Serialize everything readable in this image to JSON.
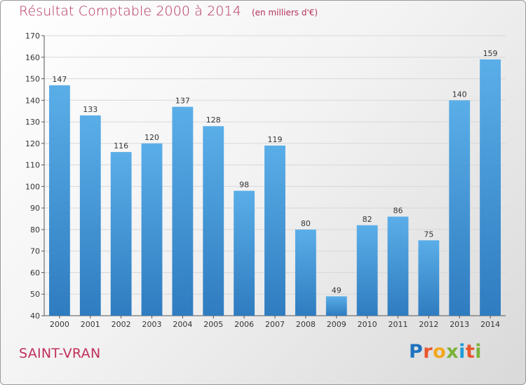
{
  "header": {
    "title": "Résultat Comptable 2000 à 2014",
    "unit": "(en milliers d'€)"
  },
  "footer": {
    "commune": "SAINT-VRAN",
    "logo": "Proxiti"
  },
  "colors": {
    "title": "#b5325a",
    "bar_top": "#5aaee8",
    "bar_bottom": "#2f7cc0",
    "logo_letters": [
      "#1e73be",
      "#e8562b",
      "#f2a81d",
      "#7bb23a",
      "#1e9ad6",
      "#e8562b",
      "#7bb23a"
    ]
  },
  "chart_data": {
    "type": "bar",
    "title": "Résultat Comptable 2000 à 2014",
    "xlabel": "",
    "ylabel": "",
    "categories": [
      "2000",
      "2001",
      "2002",
      "2003",
      "2004",
      "2005",
      "2006",
      "2007",
      "2008",
      "2009",
      "2010",
      "2011",
      "2012",
      "2013",
      "2014"
    ],
    "values": [
      147,
      133,
      116,
      120,
      137,
      128,
      98,
      119,
      80,
      49,
      82,
      86,
      75,
      140,
      159
    ],
    "ylim": [
      40,
      170
    ],
    "yticks": [
      40,
      50,
      60,
      70,
      80,
      90,
      100,
      110,
      120,
      130,
      140,
      150,
      160,
      170
    ],
    "grid": true,
    "legend": "none"
  }
}
